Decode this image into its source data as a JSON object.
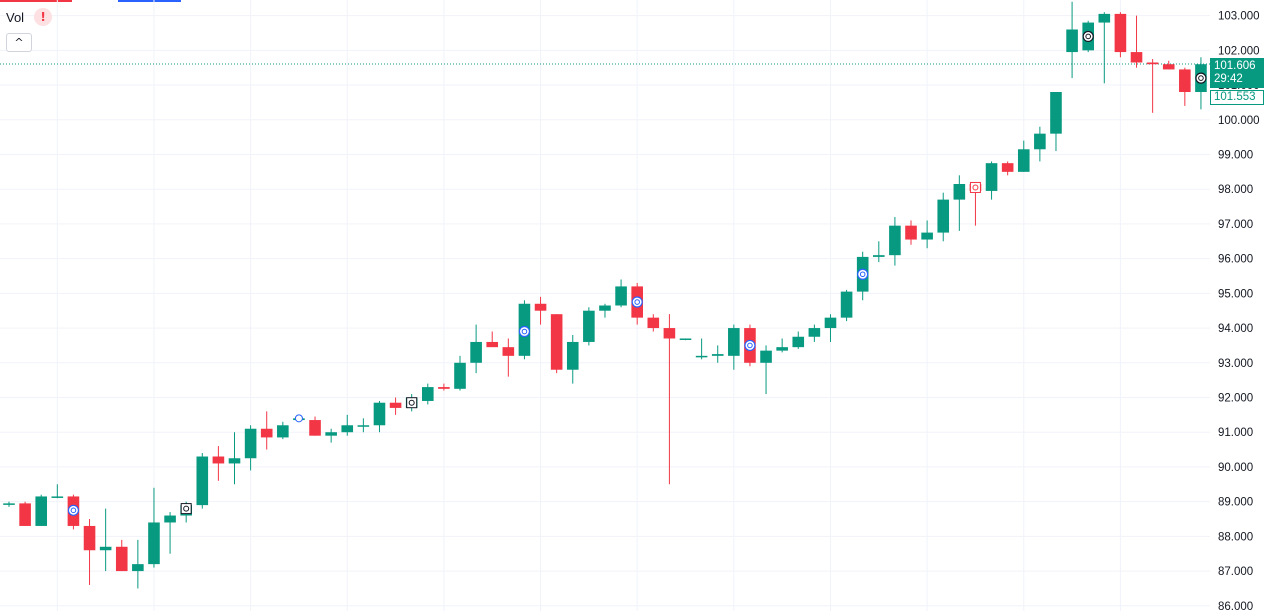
{
  "indicator": {
    "label": "Vol",
    "warning_glyph": "!",
    "collapse_glyph": "^"
  },
  "colors": {
    "up": "#089981",
    "down": "#f23645",
    "grid": "#f0f3fa",
    "marker": "#2962ff"
  },
  "chart_data": {
    "type": "candlestick",
    "ylim": [
      85.85,
      103.45
    ],
    "yticks": [
      "86.000",
      "87.000",
      "88.000",
      "89.000",
      "90.000",
      "91.000",
      "92.000",
      "93.000",
      "94.000",
      "95.000",
      "96.000",
      "97.000",
      "98.000",
      "99.000",
      "100.000",
      "101.000",
      "102.000",
      "103.000"
    ],
    "last_price": "101.606",
    "countdown": "29:42",
    "prev_price": "101.553",
    "last_price_value": 101.606,
    "candles": [
      [
        88.95,
        89.0,
        88.85,
        88.95
      ],
      [
        88.95,
        89.0,
        88.3,
        88.3
      ],
      [
        88.3,
        89.2,
        88.3,
        89.15
      ],
      [
        89.15,
        89.5,
        89.1,
        89.15
      ],
      [
        89.15,
        89.2,
        88.2,
        88.3
      ],
      [
        88.3,
        88.5,
        86.6,
        87.6
      ],
      [
        87.6,
        88.8,
        87.0,
        87.7
      ],
      [
        87.7,
        87.9,
        87.0,
        87.0
      ],
      [
        87.0,
        87.9,
        86.5,
        87.2
      ],
      [
        87.2,
        89.4,
        87.1,
        88.4
      ],
      [
        88.4,
        88.7,
        87.5,
        88.6
      ],
      [
        88.6,
        89.0,
        88.4,
        88.9
      ],
      [
        88.9,
        90.4,
        88.8,
        90.3
      ],
      [
        90.3,
        90.6,
        89.6,
        90.1
      ],
      [
        90.1,
        91.0,
        89.5,
        90.25
      ],
      [
        90.25,
        91.2,
        89.9,
        91.1
      ],
      [
        91.1,
        91.6,
        90.5,
        90.85
      ],
      [
        90.85,
        91.3,
        90.8,
        91.2
      ],
      [
        91.35,
        91.45,
        91.35,
        91.4
      ],
      [
        91.35,
        91.45,
        90.9,
        90.9
      ],
      [
        90.9,
        91.1,
        90.7,
        91.0
      ],
      [
        91.0,
        91.5,
        90.9,
        91.2
      ],
      [
        91.2,
        91.4,
        91.0,
        91.2
      ],
      [
        91.2,
        91.9,
        91.0,
        91.85
      ],
      [
        91.85,
        92.0,
        91.5,
        91.7
      ],
      [
        91.7,
        92.1,
        91.6,
        92.0
      ],
      [
        91.9,
        92.4,
        91.8,
        92.3
      ],
      [
        92.3,
        92.4,
        92.2,
        92.25
      ],
      [
        92.25,
        93.2,
        92.2,
        93.0
      ],
      [
        93.0,
        94.1,
        92.7,
        93.6
      ],
      [
        93.6,
        93.9,
        93.5,
        93.45
      ],
      [
        93.45,
        93.7,
        92.6,
        93.2
      ],
      [
        93.2,
        94.8,
        93.1,
        94.7
      ],
      [
        94.7,
        94.9,
        94.1,
        94.5
      ],
      [
        94.4,
        94.4,
        92.7,
        92.8
      ],
      [
        92.8,
        93.8,
        92.4,
        93.6
      ],
      [
        93.6,
        94.6,
        93.5,
        94.5
      ],
      [
        94.5,
        94.7,
        94.3,
        94.65
      ],
      [
        94.65,
        95.4,
        94.6,
        95.2
      ],
      [
        95.2,
        95.3,
        94.1,
        94.3
      ],
      [
        94.3,
        94.4,
        93.9,
        94.0
      ],
      [
        94.0,
        94.4,
        89.5,
        93.7
      ],
      [
        93.7,
        93.7,
        93.65,
        93.7
      ],
      [
        93.2,
        93.7,
        93.1,
        93.2
      ],
      [
        93.2,
        93.5,
        93.0,
        93.25
      ],
      [
        93.2,
        94.1,
        92.8,
        94.0
      ],
      [
        94.0,
        94.1,
        92.9,
        93.0
      ],
      [
        93.0,
        93.5,
        92.1,
        93.35
      ],
      [
        93.35,
        93.7,
        93.3,
        93.45
      ],
      [
        93.45,
        93.9,
        93.4,
        93.75
      ],
      [
        93.75,
        94.1,
        93.6,
        94.0
      ],
      [
        94.0,
        94.4,
        93.6,
        94.3
      ],
      [
        94.3,
        95.1,
        94.2,
        95.05
      ],
      [
        95.05,
        96.2,
        94.8,
        96.05
      ],
      [
        96.05,
        96.5,
        95.9,
        96.1
      ],
      [
        96.1,
        97.2,
        95.8,
        96.95
      ],
      [
        96.95,
        97.1,
        96.4,
        96.55
      ],
      [
        96.55,
        97.1,
        96.3,
        96.75
      ],
      [
        96.75,
        97.9,
        96.5,
        97.7
      ],
      [
        97.7,
        98.4,
        96.8,
        98.15
      ],
      [
        98.15,
        98.2,
        96.95,
        97.95
      ],
      [
        97.95,
        98.8,
        97.7,
        98.75
      ],
      [
        98.75,
        98.8,
        98.4,
        98.5
      ],
      [
        98.5,
        99.4,
        98.5,
        99.15
      ],
      [
        99.15,
        99.8,
        98.8,
        99.6
      ],
      [
        99.6,
        100.8,
        99.1,
        100.8
      ],
      [
        101.95,
        103.4,
        101.2,
        102.6
      ],
      [
        102.0,
        102.85,
        101.95,
        102.8
      ],
      [
        102.8,
        103.1,
        101.05,
        103.05
      ],
      [
        103.05,
        103.1,
        101.8,
        101.95
      ],
      [
        101.95,
        103.0,
        101.5,
        101.65
      ],
      [
        101.65,
        101.75,
        100.2,
        101.6
      ],
      [
        101.6,
        101.7,
        101.45,
        101.45
      ],
      [
        101.45,
        101.5,
        100.4,
        100.8
      ],
      [
        100.8,
        101.8,
        100.3,
        101.6
      ]
    ],
    "markers": [
      {
        "index": 4,
        "price": 88.75,
        "color": "#2962ff",
        "shape": "circle"
      },
      {
        "index": 11,
        "price": 88.8,
        "color": "#131722",
        "shape": "square"
      },
      {
        "index": 18,
        "price": 91.4,
        "color": "#2962ff",
        "shape": "ring"
      },
      {
        "index": 25,
        "price": 91.85,
        "color": "#131722",
        "shape": "square"
      },
      {
        "index": 32,
        "price": 93.9,
        "color": "#2962ff",
        "shape": "circle"
      },
      {
        "index": 39,
        "price": 94.75,
        "color": "#2962ff",
        "shape": "circle"
      },
      {
        "index": 46,
        "price": 93.5,
        "color": "#2962ff",
        "shape": "circle"
      },
      {
        "index": 53,
        "price": 95.55,
        "color": "#2962ff",
        "shape": "circle"
      },
      {
        "index": 60,
        "price": 98.05,
        "color": "#f23645",
        "shape": "square"
      },
      {
        "index": 67,
        "price": 102.4,
        "color": "#131722",
        "shape": "circle"
      },
      {
        "index": 74,
        "price": 101.2,
        "color": "#131722",
        "shape": "circle"
      }
    ]
  }
}
